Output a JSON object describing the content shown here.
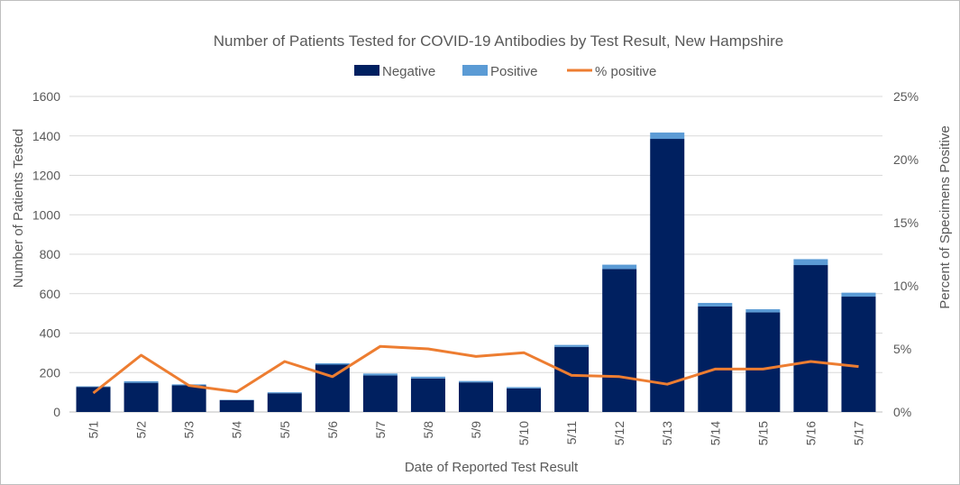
{
  "chart_data": {
    "type": "bar",
    "stacked": true,
    "title": "Number of Patients Tested for COVID-19 Antibodies by Test Result, New Hampshire",
    "xlabel": "Date of Reported Test Result",
    "ylabel": "Number of Patients Tested",
    "y2label": "Percent of Specimens Positive",
    "ylim": [
      0,
      1600
    ],
    "yticks": [
      0,
      200,
      400,
      600,
      800,
      1000,
      1200,
      1400,
      1600
    ],
    "y2lim": [
      0,
      25
    ],
    "y2ticks": [
      "0%",
      "5%",
      "10%",
      "15%",
      "20%",
      "25%"
    ],
    "y2tick_values": [
      0,
      5,
      10,
      15,
      20,
      25
    ],
    "categories": [
      "5/1",
      "5/2",
      "5/3",
      "5/4",
      "5/5",
      "5/6",
      "5/7",
      "5/8",
      "5/9",
      "5/10",
      "5/11",
      "5/12",
      "5/13",
      "5/14",
      "5/15",
      "5/16",
      "5/17"
    ],
    "series": [
      {
        "name": "Negative",
        "kind": "bar",
        "color": "#002060",
        "values": [
          127,
          148,
          135,
          60,
          95,
          240,
          185,
          170,
          150,
          120,
          330,
          725,
          1385,
          535,
          505,
          745,
          585
        ]
      },
      {
        "name": "Positive",
        "kind": "bar",
        "color": "#5b9bd5",
        "values": [
          3,
          8,
          5,
          2,
          5,
          7,
          10,
          9,
          7,
          6,
          10,
          22,
          32,
          18,
          16,
          30,
          20
        ]
      },
      {
        "name": "% positive",
        "kind": "line",
        "axis": "y2",
        "color": "#ed7d31",
        "values": [
          1.5,
          4.5,
          2.1,
          1.6,
          4.0,
          2.8,
          5.2,
          5.0,
          4.4,
          4.7,
          2.9,
          2.8,
          2.2,
          3.4,
          3.4,
          4.0,
          3.6
        ]
      }
    ],
    "legend_position": "top-center",
    "grid": true
  }
}
